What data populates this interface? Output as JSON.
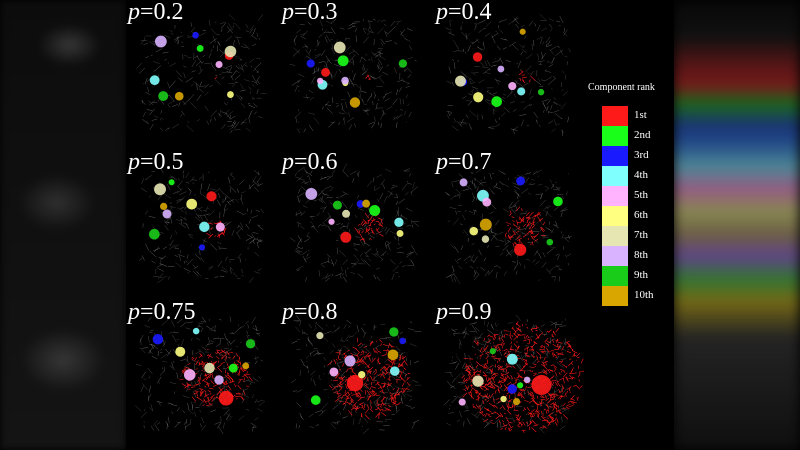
{
  "legend": {
    "title": "Component rank",
    "items": [
      {
        "label": "1st",
        "color": "#ff1a1a"
      },
      {
        "label": "2nd",
        "color": "#1aff1a"
      },
      {
        "label": "3rd",
        "color": "#1a1aff"
      },
      {
        "label": "4th",
        "color": "#80ffff"
      },
      {
        "label": "5th",
        "color": "#ffb3ff"
      },
      {
        "label": "6th",
        "color": "#ffff80"
      },
      {
        "label": "7th",
        "color": "#e6e6b3"
      },
      {
        "label": "8th",
        "color": "#d9b3ff"
      },
      {
        "label": "9th",
        "color": "#1acc1a"
      },
      {
        "label": "10th",
        "color": "#d9a600"
      }
    ]
  },
  "panels": [
    {
      "prefix": "p",
      "value": "=0.2",
      "spread": 0.05
    },
    {
      "prefix": "p",
      "value": "=0.3",
      "spread": 0.08
    },
    {
      "prefix": "p",
      "value": "=0.4",
      "spread": 0.12
    },
    {
      "prefix": "p",
      "value": "=0.5",
      "spread": 0.18
    },
    {
      "prefix": "p",
      "value": "=0.6",
      "spread": 0.25
    },
    {
      "prefix": "p",
      "value": "=0.7",
      "spread": 0.35
    },
    {
      "prefix": "p",
      "value": "=0.75",
      "spread": 0.55
    },
    {
      "prefix": "p",
      "value": "=0.8",
      "spread": 0.7
    },
    {
      "prefix": "p",
      "value": "=0.9",
      "spread": 1.0
    }
  ],
  "colors": {
    "background": "#000000",
    "edge_gray": "#9a9a9a"
  }
}
